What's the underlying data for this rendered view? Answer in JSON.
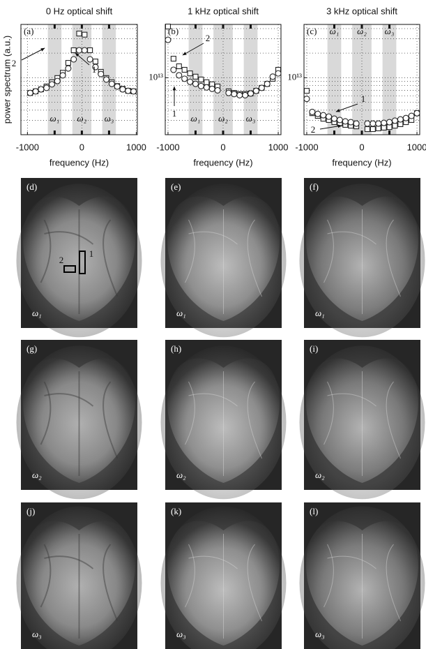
{
  "chart_data": [
    {
      "type": "scatter",
      "panel_label": "(a)",
      "title": "0 Hz optical shift",
      "xlabel": "frequency (Hz)",
      "ylabel": "power spectrum (a.u.)",
      "log_y": true,
      "grid": true,
      "xlim": [
        -1120,
        1020
      ],
      "ylim": [
        2000000000000.0,
        45000000000000.0
      ],
      "xticks": [
        -1000,
        0,
        1000
      ],
      "yticks": [],
      "yminor": [
        3000000000000.0,
        4000000000000.0,
        5000000000000.0,
        6000000000000.0,
        7000000000000.0,
        8000000000000.0,
        9000000000000.0,
        10000000000000.0,
        20000000000000.0,
        30000000000000.0,
        40000000000000.0
      ],
      "band_label_pos": "bottom",
      "bands": [
        {
          "range": [
            -625,
            -375
          ],
          "label": "ω₁"
        },
        {
          "range": [
            -175,
            175
          ],
          "label": "ω₂"
        },
        {
          "range": [
            375,
            625
          ],
          "label": "ω₃"
        }
      ],
      "x": [
        -950,
        -850,
        -750,
        -650,
        -550,
        -450,
        -350,
        -250,
        -150,
        -50,
        50,
        150,
        250,
        350,
        450,
        550,
        650,
        750,
        850,
        950
      ],
      "series": [
        {
          "name": "2",
          "marker": "square",
          "color": "#222222",
          "values": [
            6500000000000.0,
            6800000000000.0,
            7200000000000.0,
            7800000000000.0,
            8800000000000.0,
            9900000000000.0,
            11500000000000.0,
            15200000000000.0,
            21700000000000.0,
            34800000000000.0,
            33700000000000.0,
            21700000000000.0,
            15800000000000.0,
            11800000000000.0,
            9900000000000.0,
            8800000000000.0,
            7900000000000.0,
            7300000000000.0,
            6900000000000.0,
            6800000000000.0
          ]
        },
        {
          "name": "1",
          "marker": "circle",
          "color": "#222222",
          "values": [
            6500000000000.0,
            6800000000000.0,
            7200000000000.0,
            7500000000000.0,
            8300000000000.0,
            9100000000000.0,
            10700000000000.0,
            13000000000000.0,
            16800000000000.0,
            21700000000000.0,
            21700000000000.0,
            16800000000000.0,
            13500000000000.0,
            11100000000000.0,
            9500000000000.0,
            8400000000000.0,
            7800000000000.0,
            7200000000000.0,
            6900000000000.0,
            6800000000000.0
          ]
        }
      ]
    },
    {
      "type": "scatter",
      "panel_label": "(b)",
      "title": "1 kHz optical shift",
      "xlabel": "frequency (Hz)",
      "log_y": true,
      "grid": true,
      "xlim": [
        -1050,
        1050
      ],
      "ylim": [
        2000000000000.0,
        45000000000000.0
      ],
      "xticks": [
        -1000,
        0,
        1000
      ],
      "yticks": [
        {
          "value": 10000000000000.0,
          "label": "10¹³"
        }
      ],
      "yminor": [
        3000000000000.0,
        4000000000000.0,
        5000000000000.0,
        6000000000000.0,
        7000000000000.0,
        8000000000000.0,
        9000000000000.0,
        20000000000000.0,
        30000000000000.0,
        40000000000000.0
      ],
      "band_label_pos": "bottom",
      "bands": [
        {
          "range": [
            -625,
            -375
          ],
          "label": "ω₁"
        },
        {
          "range": [
            -175,
            175
          ],
          "label": "ω₂"
        },
        {
          "range": [
            375,
            625
          ],
          "label": "ω₃"
        }
      ],
      "x": [
        -1000,
        -900,
        -800,
        -700,
        -600,
        -500,
        -400,
        -300,
        -200,
        -100,
        100,
        200,
        300,
        400,
        500,
        600,
        700,
        800,
        900,
        1000
      ],
      "series": [
        {
          "name": "2",
          "marker": "square",
          "color": "#222222",
          "values": [
            42400000000000.0,
            17100000000000.0,
            13800000000000.0,
            12500000000000.0,
            11300000000000.0,
            10300000000000.0,
            9500000000000.0,
            8800000000000.0,
            8300000000000.0,
            7800000000000.0,
            6800000000000.0,
            6500000000000.0,
            6300000000000.0,
            6300000000000.0,
            6400000000000.0,
            6900000000000.0,
            7500000000000.0,
            8400000000000.0,
            9700000000000.0,
            12500000000000.0
          ]
        },
        {
          "name": "1",
          "marker": "circle",
          "color": "#222222",
          "values": [
            29100000000000.0,
            12500000000000.0,
            10700000000000.0,
            9700000000000.0,
            8900000000000.0,
            8400000000000.0,
            7900000000000.0,
            7600000000000.0,
            7300000000000.0,
            7000000000000.0,
            6500000000000.0,
            6300000000000.0,
            6100000000000.0,
            6100000000000.0,
            6400000000000.0,
            6900000000000.0,
            7500000000000.0,
            8400000000000.0,
            10300000000000.0,
            11300000000000.0
          ]
        }
      ]
    },
    {
      "type": "scatter",
      "panel_label": "(c)",
      "title": "3 kHz optical shift",
      "xlabel": "frequency (Hz)",
      "log_y": true,
      "grid": true,
      "xlim": [
        -1050,
        1050
      ],
      "ylim": [
        2000000000000.0,
        45000000000000.0
      ],
      "xticks": [
        -1000,
        0,
        1000
      ],
      "yticks": [
        {
          "value": 10000000000000.0,
          "label": "10¹³"
        }
      ],
      "yminor": [
        3000000000000.0,
        4000000000000.0,
        5000000000000.0,
        6000000000000.0,
        7000000000000.0,
        8000000000000.0,
        9000000000000.0,
        20000000000000.0,
        30000000000000.0,
        40000000000000.0
      ],
      "band_label_pos": "top",
      "bands": [
        {
          "range": [
            -625,
            -375
          ],
          "label": "ω₁"
        },
        {
          "range": [
            -175,
            175
          ],
          "label": "ω₂"
        },
        {
          "range": [
            375,
            625
          ],
          "label": "ω₃"
        }
      ],
      "x": [
        -1000,
        -900,
        -800,
        -700,
        -600,
        -500,
        -400,
        -300,
        -200,
        -100,
        100,
        200,
        300,
        400,
        500,
        600,
        700,
        800,
        900,
        1000
      ],
      "series": [
        {
          "name": "2",
          "marker": "square",
          "color": "#222222",
          "values": [
            6900000000000.0,
            3670000000000.0,
            3400000000000.0,
            3140000000000.0,
            3030000000000.0,
            2850000000000.0,
            2740000000000.0,
            2640000000000.0,
            2580000000000.0,
            2530000000000.0,
            2340000000000.0,
            2340000000000.0,
            2390000000000.0,
            2440000000000.0,
            2480000000000.0,
            2580000000000.0,
            2690000000000.0,
            2850000000000.0,
            3030000000000.0,
            3670000000000.0
          ]
        },
        {
          "name": "1",
          "marker": "circle",
          "color": "#222222",
          "values": [
            5500000000000.0,
            3800000000000.0,
            3600000000000.0,
            3470000000000.0,
            3330000000000.0,
            3140000000000.0,
            3030000000000.0,
            2910000000000.0,
            2850000000000.0,
            2740000000000.0,
            2740000000000.0,
            2740000000000.0,
            2740000000000.0,
            2790000000000.0,
            2850000000000.0,
            2970000000000.0,
            3080000000000.0,
            3200000000000.0,
            3400000000000.0,
            3670000000000.0
          ]
        }
      ]
    }
  ],
  "images": [
    {
      "label": "(d)",
      "band": "ω₁",
      "rois": [
        "2",
        "1"
      ]
    },
    {
      "label": "(e)",
      "band": "ω₁"
    },
    {
      "label": "(f)",
      "band": "ω₁"
    },
    {
      "label": "(g)",
      "band": "ω₂"
    },
    {
      "label": "(h)",
      "band": "ω₂"
    },
    {
      "label": "(i)",
      "band": "ω₂"
    },
    {
      "label": "(j)",
      "band": "ω₃"
    },
    {
      "label": "(k)",
      "band": "ω₃"
    },
    {
      "label": "(l)",
      "band": "ω₃"
    }
  ]
}
